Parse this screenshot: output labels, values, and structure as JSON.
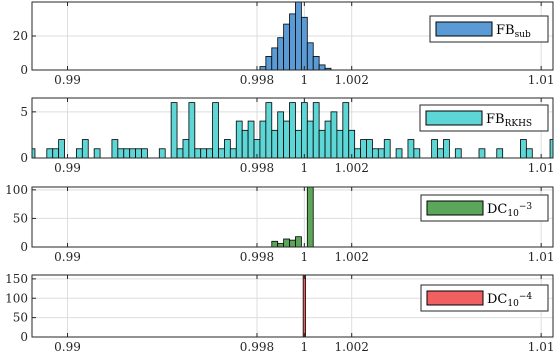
{
  "chart_data": [
    {
      "type": "bar",
      "legend": {
        "main": "FB",
        "sub": "sub",
        "sup": ""
      },
      "color": "#5B9BD5",
      "xlim": [
        0.9885,
        1.0105
      ],
      "ylim": [
        0,
        40
      ],
      "yticks": [
        0,
        20
      ],
      "xticks": [
        0.99,
        0.998,
        1,
        1.002,
        1.01
      ],
      "xticklabels": [
        "0.99",
        "0.998",
        "1",
        "1.002",
        "1.01"
      ],
      "bin_width": 0.00025,
      "bins": [
        {
          "x": 0.99825,
          "y": 2
        },
        {
          "x": 0.9985,
          "y": 8
        },
        {
          "x": 0.99875,
          "y": 13
        },
        {
          "x": 0.999,
          "y": 19
        },
        {
          "x": 0.99925,
          "y": 27
        },
        {
          "x": 0.9995,
          "y": 33
        },
        {
          "x": 0.99975,
          "y": 40
        },
        {
          "x": 1.0,
          "y": 31
        },
        {
          "x": 1.00025,
          "y": 16
        },
        {
          "x": 1.0005,
          "y": 8
        },
        {
          "x": 1.00075,
          "y": 3
        },
        {
          "x": 1.001,
          "y": 1
        }
      ]
    },
    {
      "type": "bar",
      "legend": {
        "main": "FB",
        "sub": "RKHS",
        "sup": ""
      },
      "color": "#5ED6D6",
      "xlim": [
        0.9885,
        1.0105
      ],
      "ylim": [
        0,
        6.5
      ],
      "yticks": [
        0,
        5
      ],
      "xticks": [
        0.99,
        0.998,
        1,
        1.002,
        1.01
      ],
      "xticklabels": [
        "0.99",
        "0.998",
        "1",
        "1.002",
        "1.01"
      ],
      "bin_width": 0.00025,
      "bins": [
        {
          "x": 0.9885,
          "y": 1
        },
        {
          "x": 0.98925,
          "y": 1
        },
        {
          "x": 0.9895,
          "y": 1
        },
        {
          "x": 0.98975,
          "y": 2
        },
        {
          "x": 0.9905,
          "y": 1
        },
        {
          "x": 0.99075,
          "y": 2
        },
        {
          "x": 0.99125,
          "y": 1
        },
        {
          "x": 0.992,
          "y": 2
        },
        {
          "x": 0.99225,
          "y": 1
        },
        {
          "x": 0.9925,
          "y": 1
        },
        {
          "x": 0.99275,
          "y": 1
        },
        {
          "x": 0.993,
          "y": 1
        },
        {
          "x": 0.99325,
          "y": 1
        },
        {
          "x": 0.994,
          "y": 1
        },
        {
          "x": 0.9945,
          "y": 6
        },
        {
          "x": 0.99475,
          "y": 1
        },
        {
          "x": 0.995,
          "y": 2
        },
        {
          "x": 0.99525,
          "y": 6
        },
        {
          "x": 0.9955,
          "y": 1
        },
        {
          "x": 0.99575,
          "y": 1
        },
        {
          "x": 0.996,
          "y": 1
        },
        {
          "x": 0.99625,
          "y": 6
        },
        {
          "x": 0.9965,
          "y": 1
        },
        {
          "x": 0.99675,
          "y": 2
        },
        {
          "x": 0.997,
          "y": 1
        },
        {
          "x": 0.99725,
          "y": 4
        },
        {
          "x": 0.9975,
          "y": 3
        },
        {
          "x": 0.99775,
          "y": 4
        },
        {
          "x": 0.998,
          "y": 2
        },
        {
          "x": 0.99825,
          "y": 4
        },
        {
          "x": 0.9985,
          "y": 6
        },
        {
          "x": 0.99875,
          "y": 3
        },
        {
          "x": 0.999,
          "y": 5
        },
        {
          "x": 0.99925,
          "y": 4
        },
        {
          "x": 0.9995,
          "y": 6
        },
        {
          "x": 0.99975,
          "y": 3
        },
        {
          "x": 1.0,
          "y": 6
        },
        {
          "x": 1.00025,
          "y": 4
        },
        {
          "x": 1.0005,
          "y": 6
        },
        {
          "x": 1.00075,
          "y": 3
        },
        {
          "x": 1.001,
          "y": 4
        },
        {
          "x": 1.00125,
          "y": 5
        },
        {
          "x": 1.0015,
          "y": 3
        },
        {
          "x": 1.00175,
          "y": 6
        },
        {
          "x": 1.002,
          "y": 3
        },
        {
          "x": 1.00225,
          "y": 1
        },
        {
          "x": 1.0025,
          "y": 2
        },
        {
          "x": 1.00275,
          "y": 2
        },
        {
          "x": 1.003,
          "y": 1
        },
        {
          "x": 1.00325,
          "y": 1
        },
        {
          "x": 1.0035,
          "y": 2
        },
        {
          "x": 1.004,
          "y": 1
        },
        {
          "x": 1.0045,
          "y": 2
        },
        {
          "x": 1.00475,
          "y": 1
        },
        {
          "x": 1.0055,
          "y": 2
        },
        {
          "x": 1.00575,
          "y": 1
        },
        {
          "x": 1.006,
          "y": 2
        },
        {
          "x": 1.0065,
          "y": 1
        },
        {
          "x": 1.0075,
          "y": 1
        },
        {
          "x": 1.00825,
          "y": 1
        },
        {
          "x": 1.00925,
          "y": 2
        },
        {
          "x": 1.0095,
          "y": 1
        },
        {
          "x": 1.0105,
          "y": 2
        }
      ]
    },
    {
      "type": "bar",
      "legend": {
        "main": "DC",
        "sub": "10",
        "sup": "−3"
      },
      "color": "#5BA65B",
      "xlim": [
        0.9885,
        1.0105
      ],
      "ylim": [
        0,
        105
      ],
      "yticks": [
        0,
        50,
        100
      ],
      "xticks": [
        0.99,
        0.998,
        1,
        1.002,
        1.01
      ],
      "xticklabels": [
        "0.99",
        "0.998",
        "1",
        "1.002",
        "1.01"
      ],
      "bin_width": 0.00025,
      "bins": [
        {
          "x": 0.99875,
          "y": 10
        },
        {
          "x": 0.999,
          "y": 6
        },
        {
          "x": 0.99925,
          "y": 14
        },
        {
          "x": 0.9995,
          "y": 12
        },
        {
          "x": 0.99975,
          "y": 18
        },
        {
          "x": 1.00025,
          "y": 105
        }
      ]
    },
    {
      "type": "bar",
      "legend": {
        "main": "DC",
        "sub": "10",
        "sup": "−4"
      },
      "color": "#F06060",
      "xlim": [
        0.9885,
        1.0105
      ],
      "ylim": [
        0,
        160
      ],
      "yticks": [
        0,
        50,
        100,
        150
      ],
      "xticks": [
        0.99,
        0.998,
        1,
        1.002,
        1.01
      ],
      "xticklabels": [
        "0.99",
        "0.998",
        "1",
        "1.002",
        "1.01"
      ],
      "bin_width": 0.0001,
      "bins": [
        {
          "x": 1.0,
          "y": 160
        }
      ]
    }
  ]
}
